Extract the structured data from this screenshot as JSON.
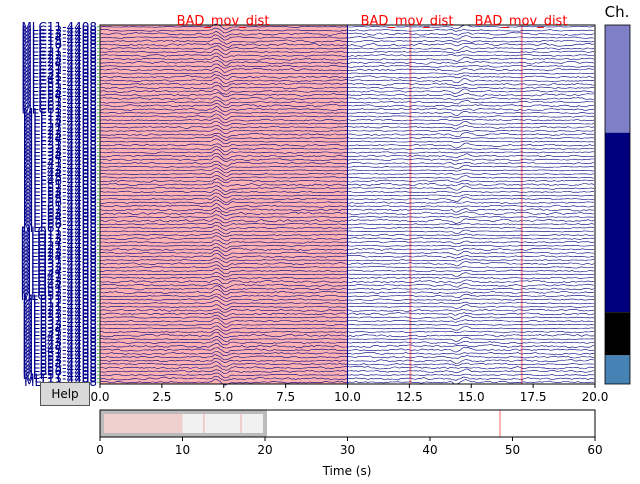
{
  "annotation_labels": [
    "BAD_mov_dist",
    "BAD_mov_dist",
    "BAD_mov_dist"
  ],
  "channel_type_label": "Ch.",
  "help_label": "Help",
  "main_xaxis": {
    "ticks": [
      "0.0",
      "2.5",
      "5.0",
      "7.5",
      "10.0",
      "12.5",
      "15.0",
      "17.5",
      "20.0"
    ],
    "range": [
      0,
      20
    ]
  },
  "scroll_xaxis": {
    "ticks": [
      "0",
      "10",
      "20",
      "30",
      "40",
      "50",
      "60"
    ],
    "range": [
      0,
      60
    ],
    "label": "Time (s)"
  },
  "view_window": [
    0,
    20
  ],
  "annotations": [
    {
      "onset": 0.0,
      "offset": 10.0,
      "label": "BAD_mov_dist"
    },
    {
      "onset": 12.5,
      "offset": 12.6,
      "label": "BAD_mov_dist"
    },
    {
      "onset": 17.0,
      "offset": 17.1,
      "label": "BAD_mov_dist"
    },
    {
      "onset": 48.4,
      "offset": 48.5,
      "label": ""
    }
  ],
  "channels": [
    "MLC11-4408",
    "MLC12-4408",
    "MLC13-4408",
    "MLC14-4408",
    "MLC15-4408",
    "MLC16-4408",
    "MLC17-4408",
    "MLC21-4408",
    "MLC22-4408",
    "MLC23-4408",
    "MLC24-4408",
    "MLC25-4408",
    "MLC31-4408",
    "MLC32-4408",
    "MLC41-4408",
    "MLC42-4408",
    "MLC51-4408",
    "MLC52-4408",
    "MLC53-4408",
    "MLC54-4408",
    "MLC55-4408",
    "MLC61-4408",
    "MLC62-4408",
    "MLC63-4408",
    "MLF11-4408",
    "MLF12-4408",
    "MLF13-4408",
    "MLF14-4408",
    "MLF21-4408",
    "MLF22-4408",
    "MLF23-4408",
    "MLF24-4408",
    "MLF25-4408",
    "MLF31-4408",
    "MLF32-4408",
    "MLF33-4408",
    "MLF34-4408",
    "MLF35-4408",
    "MLF41-4408",
    "MLF42-4408",
    "MLF43-4408",
    "MLF44-4408",
    "MLF45-4408",
    "MLF46-4408",
    "MLF51-4408",
    "MLF52-4408",
    "MLF53-4408",
    "MLF54-4408",
    "MLF55-4408",
    "MLF56-4408",
    "MLF61-4408",
    "MLF62-4408",
    "MLF63-4408",
    "MLF64-4408",
    "MLF65-4408",
    "MLF66-4408",
    "MLF67-4408",
    "MLO11-4408",
    "MLO12-4408",
    "MLO13-4408",
    "MLO14-4408",
    "MLO21-4408",
    "MLO22-4408",
    "MLO23-4408",
    "MLO24-4408",
    "MLO31-4408",
    "MLO32-4408",
    "MLO33-4408",
    "MLO34-4408",
    "MLO41-4408",
    "MLO42-4408",
    "MLO43-4408",
    "MLO44-4408",
    "MLO51-4408",
    "MLO52-4408",
    "MLO53-4408",
    "MLP11-4408",
    "MLP12-4408",
    "MLP21-4408",
    "MLP22-4408",
    "MLP23-4408",
    "MLP31-4408",
    "MLP32-4408",
    "MLP33-4408",
    "MLP34-4408",
    "MLP35-4408",
    "MLP41-4408",
    "MLP42-4408",
    "MLP43-4408",
    "MLP44-4408",
    "MLP45-4408",
    "MLP51-4408",
    "MLP52-4408",
    "MLP53-4408",
    "MLP54-4408",
    "MLP55-4408",
    "MLP56-4408",
    "MLP57-4408",
    "MLT11-4408",
    "MLT12-4408"
  ],
  "channel_type_colors": [
    {
      "type": "ref_meg",
      "color": "#7f7fc8",
      "fraction": 0.3
    },
    {
      "type": "mag",
      "color": "#00007f",
      "fraction": 0.5
    },
    {
      "type": "misc",
      "color": "#000000",
      "fraction": 0.12
    },
    {
      "type": "stim",
      "color": "#4682b4",
      "fraction": 0.08
    }
  ],
  "colors": {
    "trace": "#000080",
    "annotation_fill": "#ffb2b2",
    "annotation_line": "#ff9999",
    "annotation_text": "#ff0000",
    "channel_label": "#00008b",
    "scroll_window": "#e6e6e6",
    "scroll_window_edge": "#bbbbbb"
  }
}
